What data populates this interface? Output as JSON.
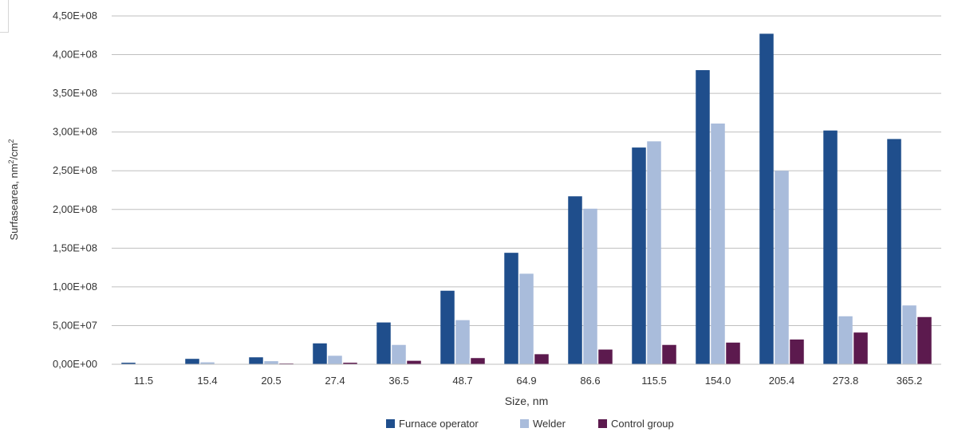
{
  "chart_data": {
    "type": "bar",
    "title": "",
    "xlabel": "Size, nm",
    "ylabel_main": "Surfasearea, nm",
    "ylabel_sup1": "2",
    "ylabel_mid": "/cm",
    "ylabel_sup2": "2",
    "ylim": [
      0,
      450000000
    ],
    "yticks": [
      "0,00E+00",
      "5,00E+07",
      "1,00E+08",
      "1,50E+08",
      "2,00E+08",
      "2,50E+08",
      "3,00E+08",
      "3,50E+08",
      "4,00E+08",
      "4,50E+08"
    ],
    "ytick_values": [
      0,
      50000000,
      100000000,
      150000000,
      200000000,
      250000000,
      300000000,
      350000000,
      400000000,
      450000000
    ],
    "categories": [
      "11.5",
      "15.4",
      "20.5",
      "27.4",
      "36.5",
      "48.7",
      "64.9",
      "86.6",
      "115.5",
      "154.0",
      "205.4",
      "273.8",
      "365.2"
    ],
    "series": [
      {
        "name": "Furnace operator",
        "color": "#1f4e8c",
        "values": [
          2000000,
          7000000,
          9000000,
          27000000,
          54000000,
          95000000,
          144000000,
          217000000,
          280000000,
          380000000,
          427000000,
          302000000,
          291000000
        ]
      },
      {
        "name": "Welder",
        "color": "#a9bcdb",
        "values": [
          500000,
          2500000,
          4000000,
          11000000,
          25000000,
          57000000,
          117000000,
          201000000,
          288000000,
          311000000,
          250000000,
          62000000,
          76000000
        ]
      },
      {
        "name": "Control group",
        "color": "#5c1a4e",
        "values": [
          200000,
          500000,
          1000000,
          2000000,
          4500000,
          8000000,
          13000000,
          19000000,
          25000000,
          28000000,
          32000000,
          41000000,
          61000000
        ]
      }
    ],
    "grid": true,
    "legend_position": "bottom-center"
  }
}
